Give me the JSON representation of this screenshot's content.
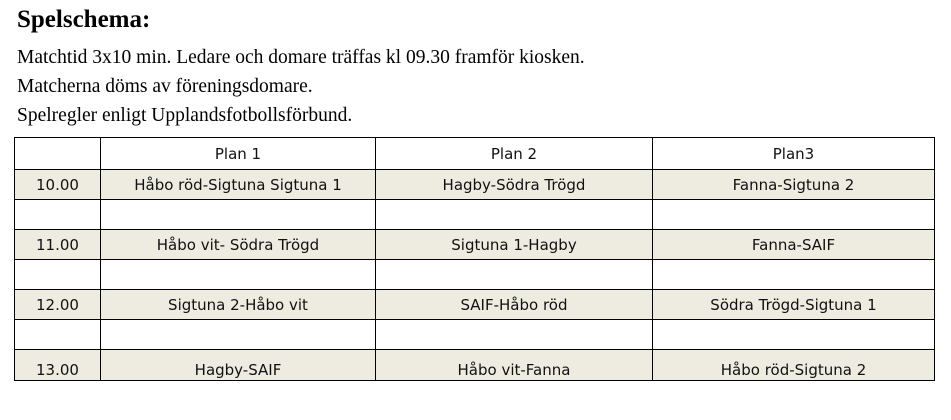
{
  "title": "Spelschema:",
  "lines": [
    "Matchtid 3x10 min. Ledare och domare träffas kl 09.30 framför kiosken.",
    "Matcherna döms av föreningsdomare.",
    "Spelregler enligt Upplandsfotbollsförbund."
  ],
  "table": {
    "headers": [
      "",
      "Plan 1",
      "Plan 2",
      "Plan3"
    ],
    "rows": [
      [
        "10.00",
        "Håbo röd-Sigtuna Sigtuna 1",
        "Hagby-Södra Trögd",
        "Fanna-Sigtuna 2"
      ],
      [
        "",
        "",
        "",
        ""
      ],
      [
        "11.00",
        "Håbo vit- Södra Trögd",
        "Sigtuna 1-Hagby",
        "Fanna-SAIF"
      ],
      [
        "",
        "",
        "",
        ""
      ],
      [
        "12.00",
        "Sigtuna 2-Håbo vit",
        "SAIF-Håbo röd",
        "Södra Trögd-Sigtuna 1"
      ],
      [
        "",
        "",
        "",
        ""
      ],
      [
        "13.00",
        "Hagby-SAIF",
        "Håbo vit-Fanna",
        "Håbo röd-Sigtuna 2"
      ]
    ]
  },
  "colors": {
    "shaded_row": "#eeece1"
  }
}
